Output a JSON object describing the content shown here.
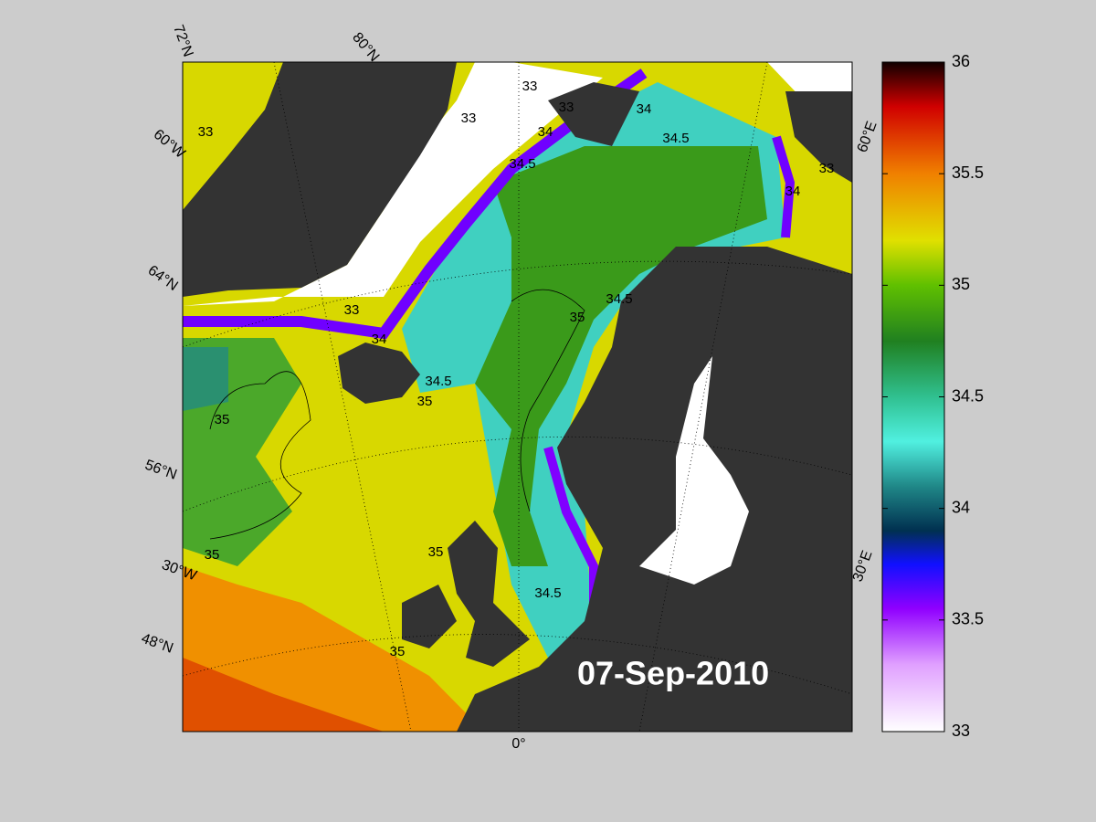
{
  "date": "07-Sep-2010",
  "colorbar": {
    "lim": [
      33,
      36
    ],
    "ticks": [
      33,
      33.5,
      34,
      34.5,
      35,
      35.5,
      36
    ],
    "colormap": [
      [
        33,
        "#ffffff"
      ],
      [
        33.3,
        "#e0a0ff"
      ],
      [
        33.55,
        "#9000ff"
      ],
      [
        33.75,
        "#1010ff"
      ],
      [
        33.9,
        "#003050"
      ],
      [
        34.1,
        "#208888"
      ],
      [
        34.3,
        "#50f0e0"
      ],
      [
        34.5,
        "#30c090"
      ],
      [
        34.75,
        "#208020"
      ],
      [
        35,
        "#60c000"
      ],
      [
        35.2,
        "#e0e000"
      ],
      [
        35.5,
        "#f08000"
      ],
      [
        35.8,
        "#d00000"
      ],
      [
        36,
        "#100000"
      ]
    ]
  },
  "graticule_labels": [
    "72°N",
    "80°N",
    "60°W",
    "64°N",
    "56°N",
    "30°W",
    "48°N",
    "0°",
    "30°E",
    "60°E"
  ],
  "contour_labels": [
    "33",
    "33",
    "33",
    "33",
    "33",
    "33",
    "34",
    "34",
    "34",
    "34",
    "34.5",
    "34.5",
    "34.5",
    "34.5",
    "34.5",
    "35",
    "35",
    "35",
    "35",
    "35",
    "35"
  ]
}
